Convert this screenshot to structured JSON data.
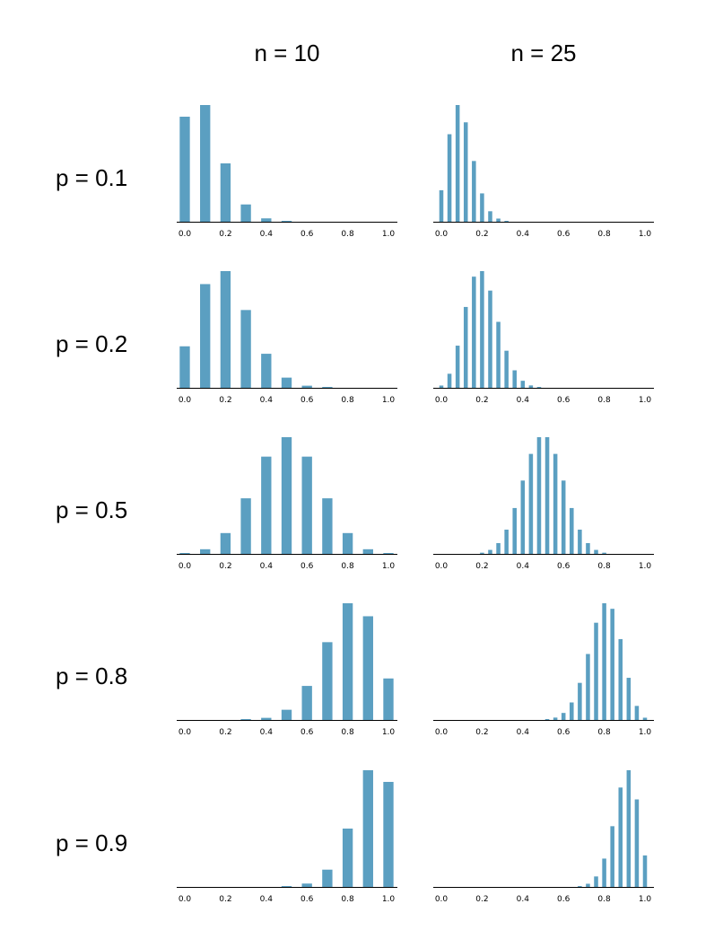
{
  "chart_data": {
    "type": "bar",
    "title": "",
    "columns": [
      "n = 10",
      "n = 25"
    ],
    "rows": [
      "p = 0.1",
      "p = 0.2",
      "p = 0.5",
      "p = 0.8",
      "p = 0.9"
    ],
    "n_values": [
      10,
      25
    ],
    "p_values": [
      0.1,
      0.2,
      0.5,
      0.8,
      0.9
    ],
    "bar_color": "#5b9fc1",
    "x_axis": {
      "range": [
        0.0,
        1.0
      ],
      "ticks": [
        "0.0",
        "0.2",
        "0.4",
        "0.6",
        "0.8",
        "1.0"
      ],
      "label": ""
    },
    "y_axis": {
      "shown": false
    },
    "grid": false,
    "x_quantity": "sample proportion k/n",
    "panels": [
      {
        "row": "p = 0.1",
        "column": "n = 10",
        "x": [
          0.0,
          0.1,
          0.2,
          0.3,
          0.4,
          0.5,
          0.6,
          0.7,
          0.8,
          0.9,
          1.0
        ],
        "values": [
          0.3487,
          0.3874,
          0.1937,
          0.0574,
          0.0112,
          0.0015,
          0.0001,
          0.0,
          0.0,
          0.0,
          0.0
        ]
      },
      {
        "row": "p = 0.1",
        "column": "n = 25",
        "x": [
          0.0,
          0.04,
          0.08,
          0.12,
          0.16,
          0.2,
          0.24,
          0.28,
          0.32,
          0.36,
          0.4,
          0.44,
          0.48,
          0.52,
          0.56,
          0.6,
          0.64,
          0.68,
          0.72,
          0.76,
          0.8,
          0.84,
          0.88,
          0.92,
          0.96,
          1.0
        ],
        "values": [
          0.0718,
          0.1994,
          0.2659,
          0.2265,
          0.1384,
          0.0646,
          0.0239,
          0.0072,
          0.0018,
          0.0004,
          0.0001,
          0,
          0,
          0,
          0,
          0,
          0,
          0,
          0,
          0,
          0,
          0,
          0,
          0,
          0,
          0
        ]
      },
      {
        "row": "p = 0.2",
        "column": "n = 10",
        "x": [
          0.0,
          0.1,
          0.2,
          0.3,
          0.4,
          0.5,
          0.6,
          0.7,
          0.8,
          0.9,
          1.0
        ],
        "values": [
          0.1074,
          0.2684,
          0.302,
          0.2013,
          0.0881,
          0.0264,
          0.0055,
          0.0008,
          0.0001,
          0.0,
          0.0
        ]
      },
      {
        "row": "p = 0.2",
        "column": "n = 25",
        "x": [
          0.0,
          0.04,
          0.08,
          0.12,
          0.16,
          0.2,
          0.24,
          0.28,
          0.32,
          0.36,
          0.4,
          0.44,
          0.48,
          0.52,
          0.56,
          0.6,
          0.64,
          0.68,
          0.72,
          0.76,
          0.8,
          0.84,
          0.88,
          0.92,
          0.96,
          1.0
        ],
        "values": [
          0.0038,
          0.0236,
          0.0708,
          0.1358,
          0.1867,
          0.196,
          0.1633,
          0.1108,
          0.0623,
          0.0294,
          0.0118,
          0.004,
          0.0012,
          0.0003,
          0.0001,
          0,
          0,
          0,
          0,
          0,
          0,
          0,
          0,
          0,
          0,
          0
        ]
      },
      {
        "row": "p = 0.5",
        "column": "n = 10",
        "x": [
          0.0,
          0.1,
          0.2,
          0.3,
          0.4,
          0.5,
          0.6,
          0.7,
          0.8,
          0.9,
          1.0
        ],
        "values": [
          0.001,
          0.0098,
          0.0439,
          0.1172,
          0.2051,
          0.2461,
          0.2051,
          0.1172,
          0.0439,
          0.0098,
          0.001
        ]
      },
      {
        "row": "p = 0.5",
        "column": "n = 25",
        "x": [
          0.0,
          0.04,
          0.08,
          0.12,
          0.16,
          0.2,
          0.24,
          0.28,
          0.32,
          0.36,
          0.4,
          0.44,
          0.48,
          0.52,
          0.56,
          0.6,
          0.64,
          0.68,
          0.72,
          0.76,
          0.8,
          0.84,
          0.88,
          0.92,
          0.96,
          1.0
        ],
        "values": [
          0,
          0,
          0,
          0,
          0.0001,
          0.0016,
          0.0053,
          0.0143,
          0.0322,
          0.0609,
          0.0974,
          0.1328,
          0.155,
          0.155,
          0.1328,
          0.0974,
          0.0609,
          0.0322,
          0.0143,
          0.0053,
          0.0016,
          0.0001,
          0,
          0,
          0,
          0
        ]
      },
      {
        "row": "p = 0.8",
        "column": "n = 10",
        "x": [
          0.0,
          0.1,
          0.2,
          0.3,
          0.4,
          0.5,
          0.6,
          0.7,
          0.8,
          0.9,
          1.0
        ],
        "values": [
          0.0,
          0.0,
          0.0001,
          0.0008,
          0.0055,
          0.0264,
          0.0881,
          0.2013,
          0.302,
          0.2684,
          0.1074
        ]
      },
      {
        "row": "p = 0.8",
        "column": "n = 25",
        "x": [
          0.0,
          0.04,
          0.08,
          0.12,
          0.16,
          0.2,
          0.24,
          0.28,
          0.32,
          0.36,
          0.4,
          0.44,
          0.48,
          0.52,
          0.56,
          0.6,
          0.64,
          0.68,
          0.72,
          0.76,
          0.8,
          0.84,
          0.88,
          0.92,
          0.96,
          1.0
        ],
        "values": [
          0,
          0,
          0,
          0,
          0,
          0,
          0,
          0,
          0,
          0,
          0,
          0.0001,
          0.0003,
          0.0012,
          0.004,
          0.0118,
          0.0294,
          0.0623,
          0.1108,
          0.1633,
          0.196,
          0.1867,
          0.1358,
          0.0708,
          0.0236,
          0.0038
        ]
      },
      {
        "row": "p = 0.9",
        "column": "n = 10",
        "x": [
          0.0,
          0.1,
          0.2,
          0.3,
          0.4,
          0.5,
          0.6,
          0.7,
          0.8,
          0.9,
          1.0
        ],
        "values": [
          0.0,
          0.0,
          0.0,
          0.0,
          0.0001,
          0.0015,
          0.0112,
          0.0574,
          0.1937,
          0.3874,
          0.3487
        ]
      },
      {
        "row": "p = 0.9",
        "column": "n = 25",
        "x": [
          0.0,
          0.04,
          0.08,
          0.12,
          0.16,
          0.2,
          0.24,
          0.28,
          0.32,
          0.36,
          0.4,
          0.44,
          0.48,
          0.52,
          0.56,
          0.6,
          0.64,
          0.68,
          0.72,
          0.76,
          0.8,
          0.84,
          0.88,
          0.92,
          0.96,
          1.0
        ],
        "values": [
          0,
          0,
          0,
          0,
          0,
          0,
          0,
          0,
          0,
          0,
          0,
          0,
          0,
          0,
          0,
          0.0001,
          0.0004,
          0.0018,
          0.0072,
          0.0239,
          0.0646,
          0.1384,
          0.2265,
          0.2659,
          0.1994,
          0.0718
        ]
      }
    ]
  }
}
